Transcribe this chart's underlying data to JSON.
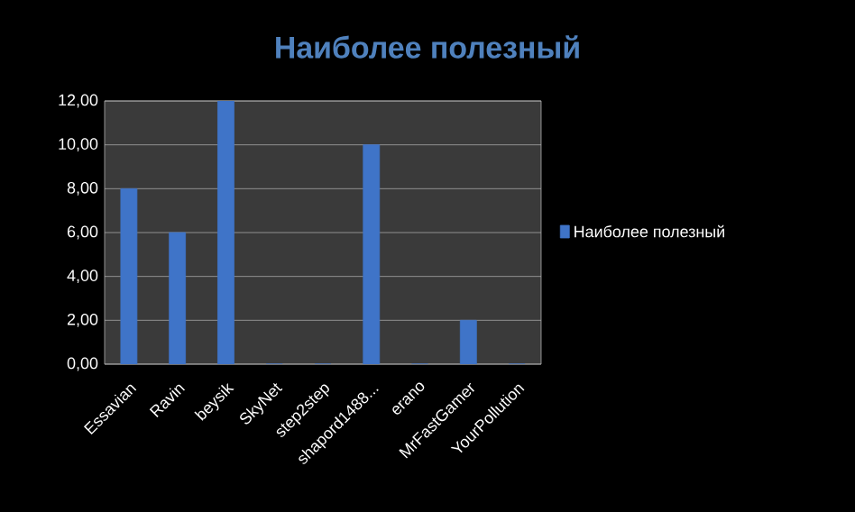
{
  "chart_data": {
    "type": "bar",
    "title": "Наиболее полезный",
    "categories": [
      "Essavian",
      "Ravin",
      "beysik",
      "SkyNet",
      "step2step",
      "shapord1488...",
      "erano",
      "MrFastGamer",
      "YourPollution"
    ],
    "series": [
      {
        "name": "Наиболее полезный",
        "color": "#3f74c8",
        "values": [
          8,
          6,
          12,
          0,
          0,
          10,
          0,
          2,
          0
        ]
      }
    ],
    "ylim": [
      0,
      12
    ],
    "yticks": [
      {
        "value": 0,
        "label": "0,00"
      },
      {
        "value": 2,
        "label": "2,00"
      },
      {
        "value": 4,
        "label": "4,00"
      },
      {
        "value": 6,
        "label": "6,00"
      },
      {
        "value": 8,
        "label": "8,00"
      },
      {
        "value": 10,
        "label": "10,00"
      },
      {
        "value": 12,
        "label": "12,00"
      }
    ],
    "grid": "y",
    "legend": "right"
  }
}
